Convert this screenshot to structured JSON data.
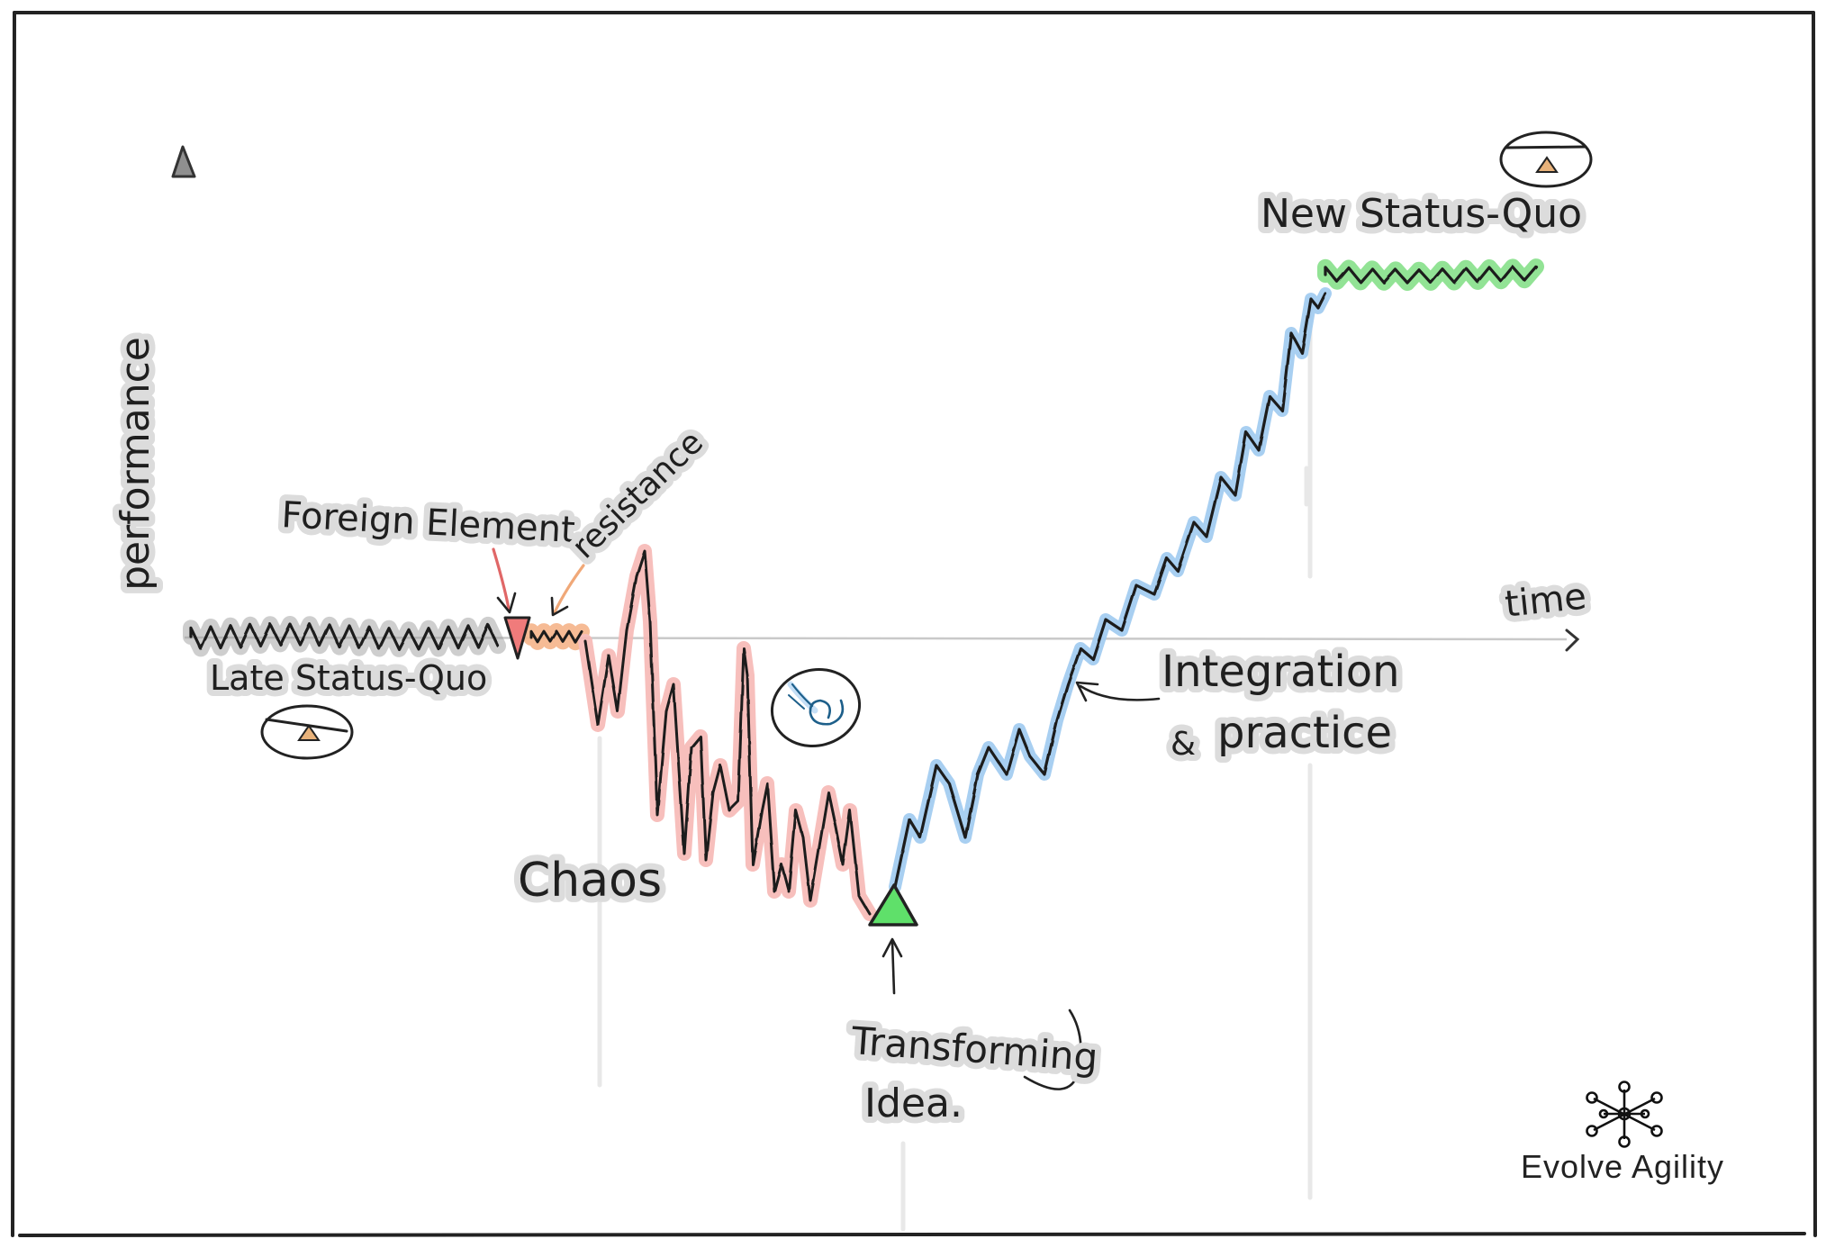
{
  "diagram": {
    "axes": {
      "y_label": "performance",
      "x_label": "time"
    },
    "phases": {
      "late_status_quo": "Late Status-Quo",
      "foreign_element": "Foreign Element.",
      "resistance": "resistance",
      "chaos": "Chaos",
      "transforming_idea_line1": "Transforming",
      "transforming_idea_line2": "Idea.",
      "integration_line1": "Integration",
      "integration_amp": "&",
      "integration_line2": "practice",
      "new_status_quo": "New Status-Quo"
    },
    "colors": {
      "late_status_quo": "#9a9a9a",
      "resistance": "#f5b48a",
      "chaos": "#f6b8b5",
      "integration": "#9fcaf0",
      "new_status_quo": "#86e08a",
      "foreign_marker": "#f07b7b",
      "idea_marker": "#5fe06a",
      "scale_icon": "#e8b27a"
    },
    "icons": {
      "late_status_quo": "balance-scale-icon",
      "chaos": "spiral-icon",
      "new_status_quo": "balance-scale-icon"
    }
  },
  "brand": {
    "name": "Evolve Agility",
    "logo": "network-snowflake-icon"
  }
}
